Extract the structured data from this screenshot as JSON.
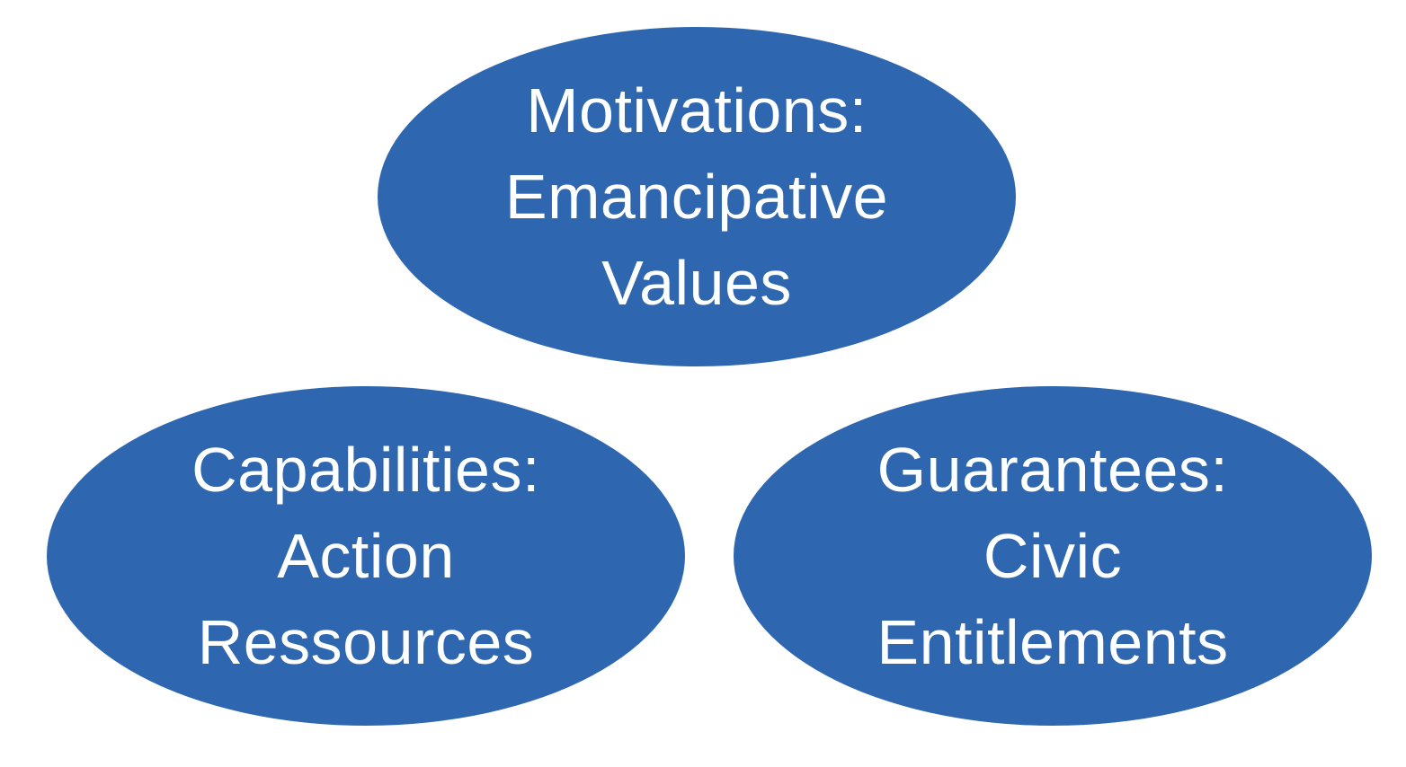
{
  "diagram": {
    "fill_color": "#2e67af",
    "text_color": "#ffffff",
    "nodes": [
      {
        "heading": "Motivations:",
        "lines": [
          "Emancipative",
          "Values"
        ]
      },
      {
        "heading": "Capabilities:",
        "lines": [
          "Action",
          "Ressources"
        ]
      },
      {
        "heading": "Guarantees:",
        "lines": [
          "Civic",
          "Entitlements"
        ]
      }
    ]
  }
}
